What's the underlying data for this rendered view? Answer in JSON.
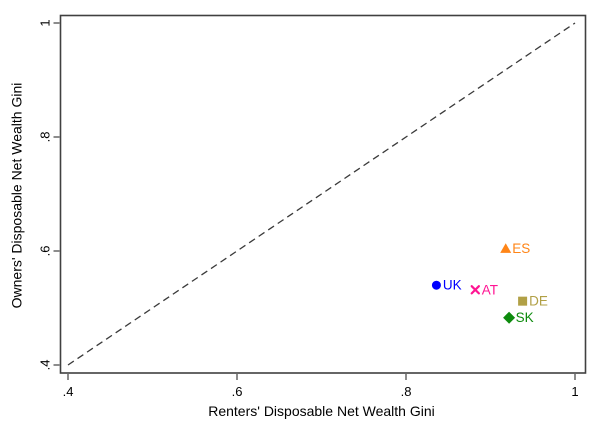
{
  "figure": {
    "background": "#ffffff",
    "axis_color": "#404040",
    "text_color": "#000000"
  },
  "chart_data": {
    "type": "scatter",
    "title": "",
    "xlabel": "Renters' Disposable Net Wealth Gini",
    "ylabel": "Owners' Disposable Net Wealth Gini",
    "xlim": [
      0.4,
      1
    ],
    "ylim": [
      0.4,
      1
    ],
    "grid": false,
    "legend_position": "none",
    "x_ticks": [
      {
        "value": 0.4,
        "label": ".4"
      },
      {
        "value": 0.6,
        "label": ".6"
      },
      {
        "value": 0.8,
        "label": ".8"
      },
      {
        "value": 1,
        "label": "1"
      }
    ],
    "y_ticks": [
      {
        "value": 0.4,
        "label": ".4"
      },
      {
        "value": 0.6,
        "label": ".6"
      },
      {
        "value": 0.8,
        "label": ".8"
      },
      {
        "value": 1,
        "label": "1"
      }
    ],
    "reference_line": {
      "name": "45-degree-line",
      "style": "dashed",
      "color": "#3a3a3a",
      "from": {
        "x": 0.4,
        "y": 0.4
      },
      "to": {
        "x": 1.0,
        "y": 1.0
      }
    },
    "points": [
      {
        "label": "UK",
        "x": 0.836,
        "y": 0.54,
        "marker": "circle",
        "color": "#0000ff"
      },
      {
        "label": "AT",
        "x": 0.882,
        "y": 0.532,
        "marker": "x",
        "color": "#ff1493"
      },
      {
        "label": "ES",
        "x": 0.918,
        "y": 0.604,
        "marker": "triangle",
        "color": "#ff8517"
      },
      {
        "label": "DE",
        "x": 0.938,
        "y": 0.512,
        "marker": "square",
        "color": "#b1a046"
      },
      {
        "label": "SK",
        "x": 0.922,
        "y": 0.483,
        "marker": "diamond",
        "color": "#0d8b0d"
      }
    ]
  }
}
